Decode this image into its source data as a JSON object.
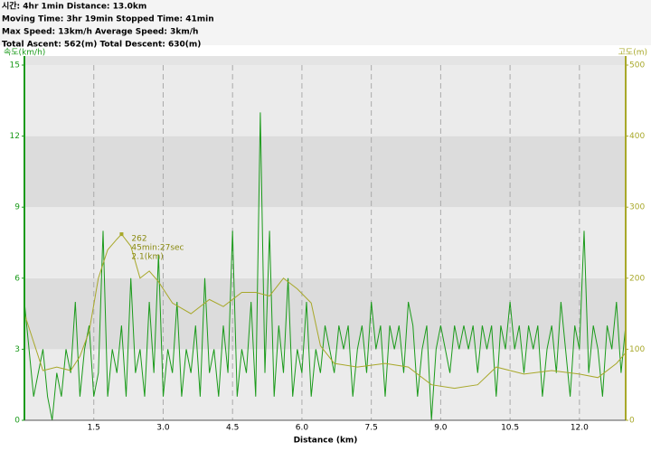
{
  "chart_data": {
    "type": "line",
    "stats": [
      "시간: 4hr 1min   Distance: 13.0km",
      "Moving Time: 3hr 19min   Stopped Time: 41min",
      "Max Speed: 13km/h   Average Speed: 3km/h",
      "Total Ascent: 562(m)   Total Descent: 630(m)"
    ],
    "ylabel": "속도(km/h)",
    "y2label": "고도(m)",
    "xlabel": "Distance (km)",
    "xlim": [
      0,
      13.0
    ],
    "ylim": [
      0,
      15
    ],
    "y2lim": [
      0,
      500
    ],
    "xticks": [
      1.5,
      {
        "value": 3,
        "label": "3.0"
      },
      4.5,
      {
        "value": 6,
        "label": "6.0"
      },
      7.5,
      {
        "value": 9,
        "label": "9.0"
      },
      10.5,
      {
        "value": 12,
        "label": "12.0"
      }
    ],
    "yticks": [
      0,
      3,
      6,
      9,
      12,
      15
    ],
    "y2ticks": [
      0,
      100,
      200,
      300,
      400,
      500
    ],
    "grid": true,
    "series": [
      {
        "name": "속도",
        "color": "#1a9a1a",
        "x": [
          0,
          0.1,
          0.2,
          0.3,
          0.4,
          0.5,
          0.6,
          0.7,
          0.8,
          0.9,
          1.0,
          1.1,
          1.2,
          1.3,
          1.4,
          1.5,
          1.6,
          1.7,
          1.8,
          1.9,
          2.0,
          2.1,
          2.2,
          2.3,
          2.4,
          2.5,
          2.6,
          2.7,
          2.8,
          2.9,
          3.0,
          3.1,
          3.2,
          3.3,
          3.4,
          3.5,
          3.6,
          3.7,
          3.8,
          3.9,
          4.0,
          4.1,
          4.2,
          4.3,
          4.4,
          4.5,
          4.6,
          4.7,
          4.8,
          4.9,
          5.0,
          5.1,
          5.2,
          5.3,
          5.4,
          5.5,
          5.6,
          5.7,
          5.8,
          5.9,
          6.0,
          6.1,
          6.2,
          6.3,
          6.4,
          6.5,
          6.6,
          6.7,
          6.8,
          6.9,
          7.0,
          7.1,
          7.2,
          7.3,
          7.4,
          7.5,
          7.6,
          7.7,
          7.8,
          7.9,
          8.0,
          8.1,
          8.2,
          8.3,
          8.4,
          8.5,
          8.6,
          8.7,
          8.8,
          8.9,
          9.0,
          9.1,
          9.2,
          9.3,
          9.4,
          9.5,
          9.6,
          9.7,
          9.8,
          9.9,
          10.0,
          10.1,
          10.2,
          10.3,
          10.4,
          10.5,
          10.6,
          10.7,
          10.8,
          10.9,
          11.0,
          11.1,
          11.2,
          11.3,
          11.4,
          11.5,
          11.6,
          11.7,
          11.8,
          11.9,
          12.0,
          12.1,
          12.2,
          12.3,
          12.4,
          12.5,
          12.6,
          12.7,
          12.8,
          12.9,
          13.0
        ],
        "values": [
          5,
          3,
          1,
          2,
          3,
          1,
          0,
          2,
          1,
          3,
          2,
          5,
          1,
          3,
          4,
          1,
          2,
          8,
          1,
          3,
          2,
          4,
          1,
          6,
          2,
          3,
          1,
          5,
          2,
          7,
          1,
          3,
          2,
          5,
          1,
          3,
          2,
          4,
          1,
          6,
          2,
          3,
          1,
          4,
          2,
          8,
          1,
          3,
          2,
          5,
          1,
          13,
          2,
          8,
          1,
          4,
          2,
          6,
          1,
          3,
          2,
          5,
          1,
          3,
          2,
          4,
          3,
          2,
          4,
          3,
          4,
          1,
          3,
          4,
          2,
          5,
          3,
          4,
          1,
          4,
          3,
          4,
          2,
          5,
          4,
          1,
          3,
          4,
          0,
          3,
          4,
          3,
          2,
          4,
          3,
          4,
          3,
          4,
          2,
          4,
          3,
          4,
          1,
          4,
          3,
          5,
          3,
          4,
          2,
          4,
          3,
          4,
          1,
          3,
          4,
          2,
          5,
          3,
          1,
          4,
          3,
          8,
          2,
          4,
          3,
          1,
          4,
          3,
          5,
          2,
          4
        ]
      },
      {
        "name": "고도",
        "color": "#a8a82a",
        "axis": "y2",
        "x": [
          0,
          0.2,
          0.4,
          0.7,
          1.0,
          1.2,
          1.4,
          1.6,
          1.8,
          2.0,
          2.1,
          2.3,
          2.5,
          2.7,
          2.9,
          3.2,
          3.6,
          4.0,
          4.3,
          4.7,
          5.0,
          5.3,
          5.6,
          5.9,
          6.2,
          6.4,
          6.7,
          7.2,
          7.8,
          8.3,
          8.8,
          9.3,
          9.8,
          10.2,
          10.8,
          11.4,
          12.0,
          12.4,
          12.8,
          13.0
        ],
        "values": [
          150,
          110,
          70,
          75,
          70,
          90,
          125,
          200,
          240,
          255,
          262,
          245,
          200,
          210,
          195,
          165,
          150,
          170,
          160,
          180,
          180,
          175,
          200,
          185,
          165,
          105,
          80,
          75,
          80,
          75,
          50,
          45,
          50,
          75,
          65,
          70,
          65,
          60,
          80,
          95
        ]
      }
    ],
    "annotation": {
      "x": 2.1,
      "value": 262,
      "time": "45min:27sec",
      "distance": "2.1(km)"
    }
  }
}
